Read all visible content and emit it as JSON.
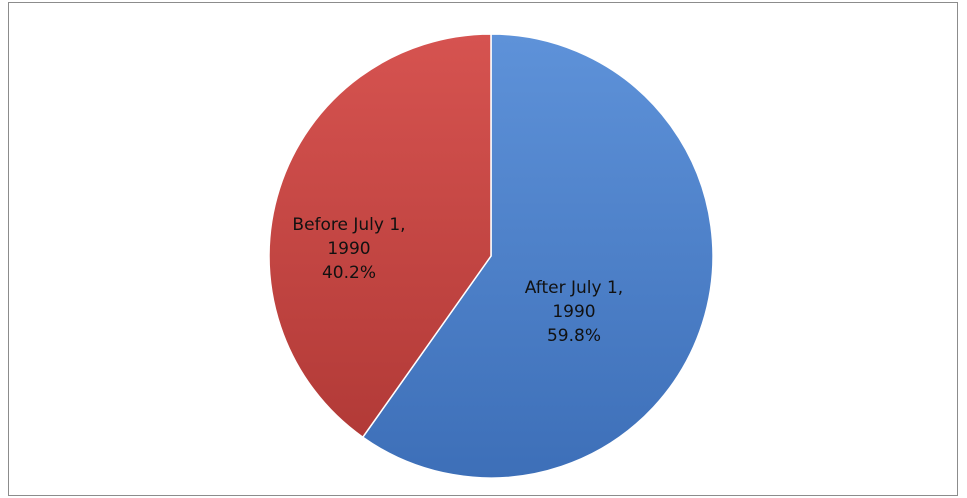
{
  "chart_data": {
    "type": "pie",
    "title": "",
    "slices": [
      {
        "label_lines": [
          "After July 1,",
          "1990"
        ],
        "pct_label": "59.8%",
        "value": 59.8,
        "color": "#4a7fcb"
      },
      {
        "label_lines": [
          "Before July 1,",
          "1990"
        ],
        "pct_label": "40.2%",
        "value": 40.2,
        "color": "#c9423f"
      }
    ],
    "start": "12 o'clock",
    "direction": "clockwise",
    "data_labels": "inside",
    "legend": "none"
  }
}
